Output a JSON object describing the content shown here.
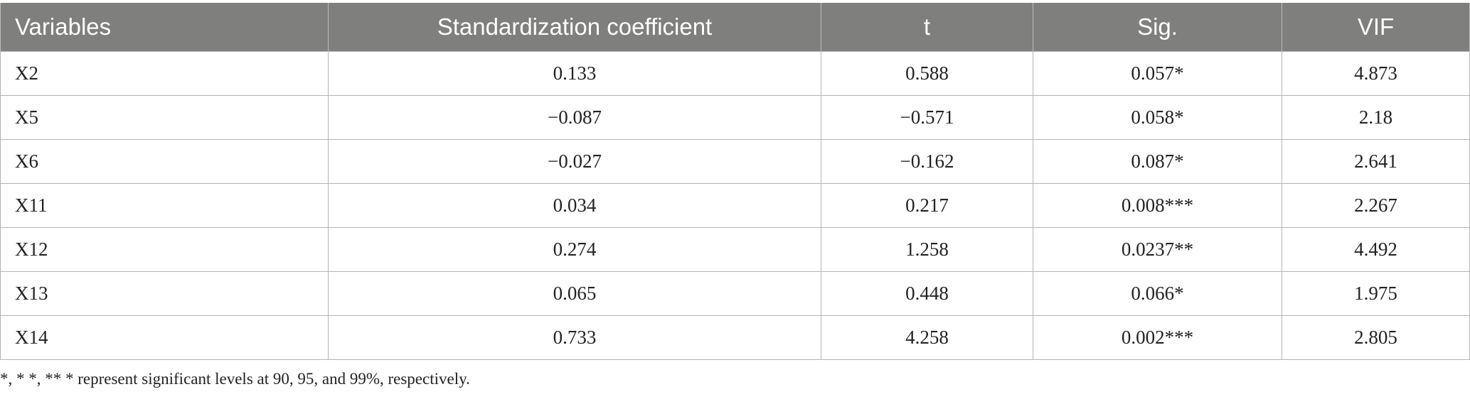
{
  "table": {
    "headers": [
      "Variables",
      "Standardization coefficient",
      "t",
      "Sig.",
      "VIF"
    ],
    "rows": [
      [
        "X2",
        "0.133",
        "0.588",
        "0.057*",
        "4.873"
      ],
      [
        "X5",
        "−0.087",
        "−0.571",
        "0.058*",
        "2.18"
      ],
      [
        "X6",
        "−0.027",
        "−0.162",
        "0.087*",
        "2.641"
      ],
      [
        "X11",
        "0.034",
        "0.217",
        "0.008***",
        "2.267"
      ],
      [
        "X12",
        "0.274",
        "1.258",
        "0.0237**",
        "4.492"
      ],
      [
        "X13",
        "0.065",
        "0.448",
        "0.066*",
        "1.975"
      ],
      [
        "X14",
        "0.733",
        "4.258",
        "0.002***",
        "2.805"
      ]
    ]
  },
  "footnote": "*, * *, ** * represent significant levels at 90, 95, and 99%, respectively.",
  "colors": {
    "header_bg": "#7f7f7e",
    "header_text": "#ffffff",
    "grid": "#b3b3b3"
  }
}
